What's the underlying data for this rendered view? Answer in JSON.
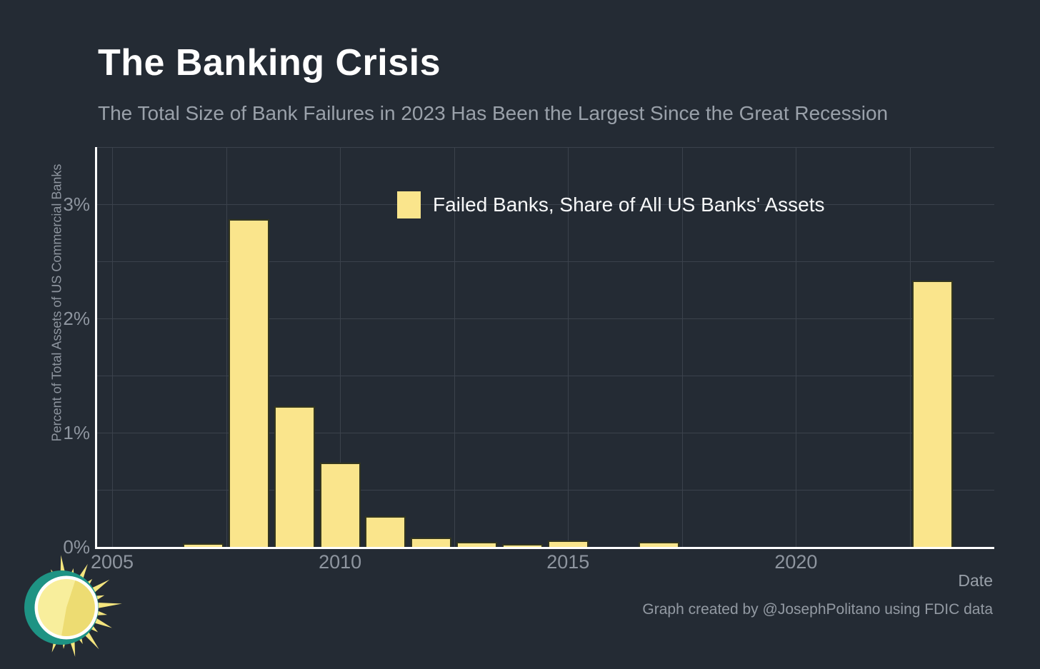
{
  "colors": {
    "background": "#242B34",
    "bar_fill": "#FAE58C",
    "bar_edge": "#33361F",
    "axis_line": "#FFFFFF",
    "gridline": "#3B424C",
    "title_text": "#FFFFFF",
    "subtitle_text": "#9AA1AA",
    "tick_text": "#8E959F",
    "logo_teal": "#1E9384",
    "logo_ray": "#F5E57E",
    "logo_face": "#F8EE9C",
    "logo_wedge": "#EDDC72",
    "logo_ring": "#FFFFFF"
  },
  "chart_data": {
    "type": "bar",
    "title": "The Banking Crisis",
    "subtitle": "The Total Size of Bank Failures in 2023 Has Been the Largest Since the Great Recession",
    "xlabel": "Date",
    "ylabel": "Percent of Total Assets of US Commercial Banks",
    "categories": [
      2005,
      2006,
      2007,
      2008,
      2009,
      2010,
      2011,
      2012,
      2013,
      2014,
      2015,
      2016,
      2017,
      2018,
      2019,
      2020,
      2021,
      2022,
      2023
    ],
    "series": [
      {
        "name": "Failed Banks, Share of All US Banks' Assets",
        "values": [
          0,
          0,
          0.03,
          2.87,
          1.23,
          0.74,
          0.27,
          0.08,
          0.045,
          0.025,
          0.055,
          0,
          0.045,
          0,
          0,
          0,
          0,
          0,
          2.33
        ]
      }
    ],
    "unit": "%",
    "xlim": [
      2004.67,
      2024.35
    ],
    "ylim": [
      0,
      3.5
    ],
    "xticks": [
      {
        "value": 2005,
        "label": "2005"
      },
      {
        "value": 2010,
        "label": "2010"
      },
      {
        "value": 2015,
        "label": "2015"
      },
      {
        "value": 2020,
        "label": "2020"
      }
    ],
    "yticks": [
      {
        "value": 0,
        "label": "0%"
      },
      {
        "value": 1,
        "label": "1%"
      },
      {
        "value": 2,
        "label": "2%"
      },
      {
        "value": 3,
        "label": "3%"
      }
    ],
    "x_gridlines": [
      2005,
      2007.5,
      2010,
      2012.5,
      2015,
      2017.5,
      2020,
      2022.5
    ],
    "y_gridlines": [
      0.5,
      1,
      1.5,
      2,
      2.5,
      3,
      3.5
    ],
    "grid": true,
    "legend_position": "inside-top"
  },
  "footer": {
    "credit": "Graph created by @JosephPolitano using FDIC data"
  }
}
